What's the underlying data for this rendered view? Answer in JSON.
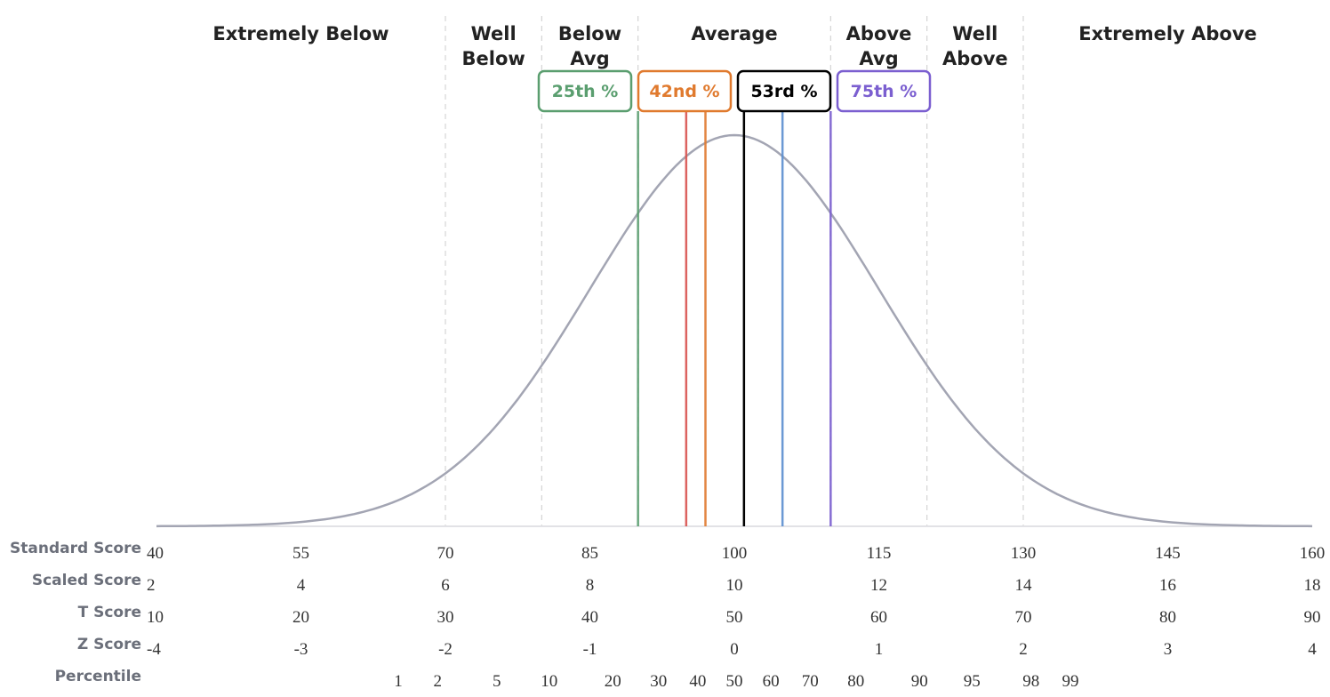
{
  "chart_data": {
    "type": "line",
    "description_type": "normal-distribution",
    "xlim_standard_score": [
      40,
      160
    ],
    "mean": 100,
    "sd": 15,
    "categories": [
      {
        "label": [
          "Extremely Below"
        ],
        "from": 40,
        "to": 70
      },
      {
        "label": [
          "Well",
          "Below"
        ],
        "from": 70,
        "to": 80
      },
      {
        "label": [
          "Below",
          "Avg"
        ],
        "from": 80,
        "to": 90
      },
      {
        "label": [
          "Average"
        ],
        "from": 90,
        "to": 110
      },
      {
        "label": [
          "Above",
          "Avg"
        ],
        "from": 110,
        "to": 120
      },
      {
        "label": [
          "Well",
          "Above"
        ],
        "from": 120,
        "to": 130
      },
      {
        "label": [
          "Extremely Above"
        ],
        "from": 130,
        "to": 160
      }
    ],
    "boundaries": [
      70,
      80,
      90,
      110,
      120,
      130
    ],
    "scales": [
      {
        "label": "Standard Score",
        "ticks": [
          "40",
          "55",
          "70",
          "85",
          "100",
          "115",
          "130",
          "145",
          "160"
        ]
      },
      {
        "label": "Scaled Score",
        "ticks": [
          "2",
          "4",
          "6",
          "8",
          "10",
          "12",
          "14",
          "16",
          "18"
        ]
      },
      {
        "label": "T Score",
        "ticks": [
          "10",
          "20",
          "30",
          "40",
          "50",
          "60",
          "70",
          "80",
          "90"
        ]
      },
      {
        "label": "Z Score",
        "ticks": [
          "-4",
          "-3",
          "-2",
          "-1",
          "0",
          "1",
          "2",
          "3",
          "4"
        ]
      }
    ],
    "percentile": {
      "label": "Percentile",
      "ticks": [
        1,
        2,
        5,
        10,
        20,
        30,
        40,
        50,
        60,
        70,
        80,
        90,
        95,
        98,
        99
      ]
    },
    "markers": [
      {
        "score": 90,
        "color": "#5a9e6f",
        "label": "25th %",
        "z": 2
      },
      {
        "score": 95,
        "color": "#d9534f",
        "label": "",
        "z": 1
      },
      {
        "score": 97,
        "color": "#e07a2e",
        "label": "42nd %",
        "z": 3
      },
      {
        "score": 101,
        "color": "#000000",
        "label": "53rd %",
        "z": 5
      },
      {
        "score": 105,
        "color": "#5b8fd0",
        "label": "",
        "z": 1
      },
      {
        "score": 110,
        "color": "#7b5fd0",
        "label": "75th %",
        "z": 1
      }
    ],
    "curve_color": "#a3a5b3"
  }
}
